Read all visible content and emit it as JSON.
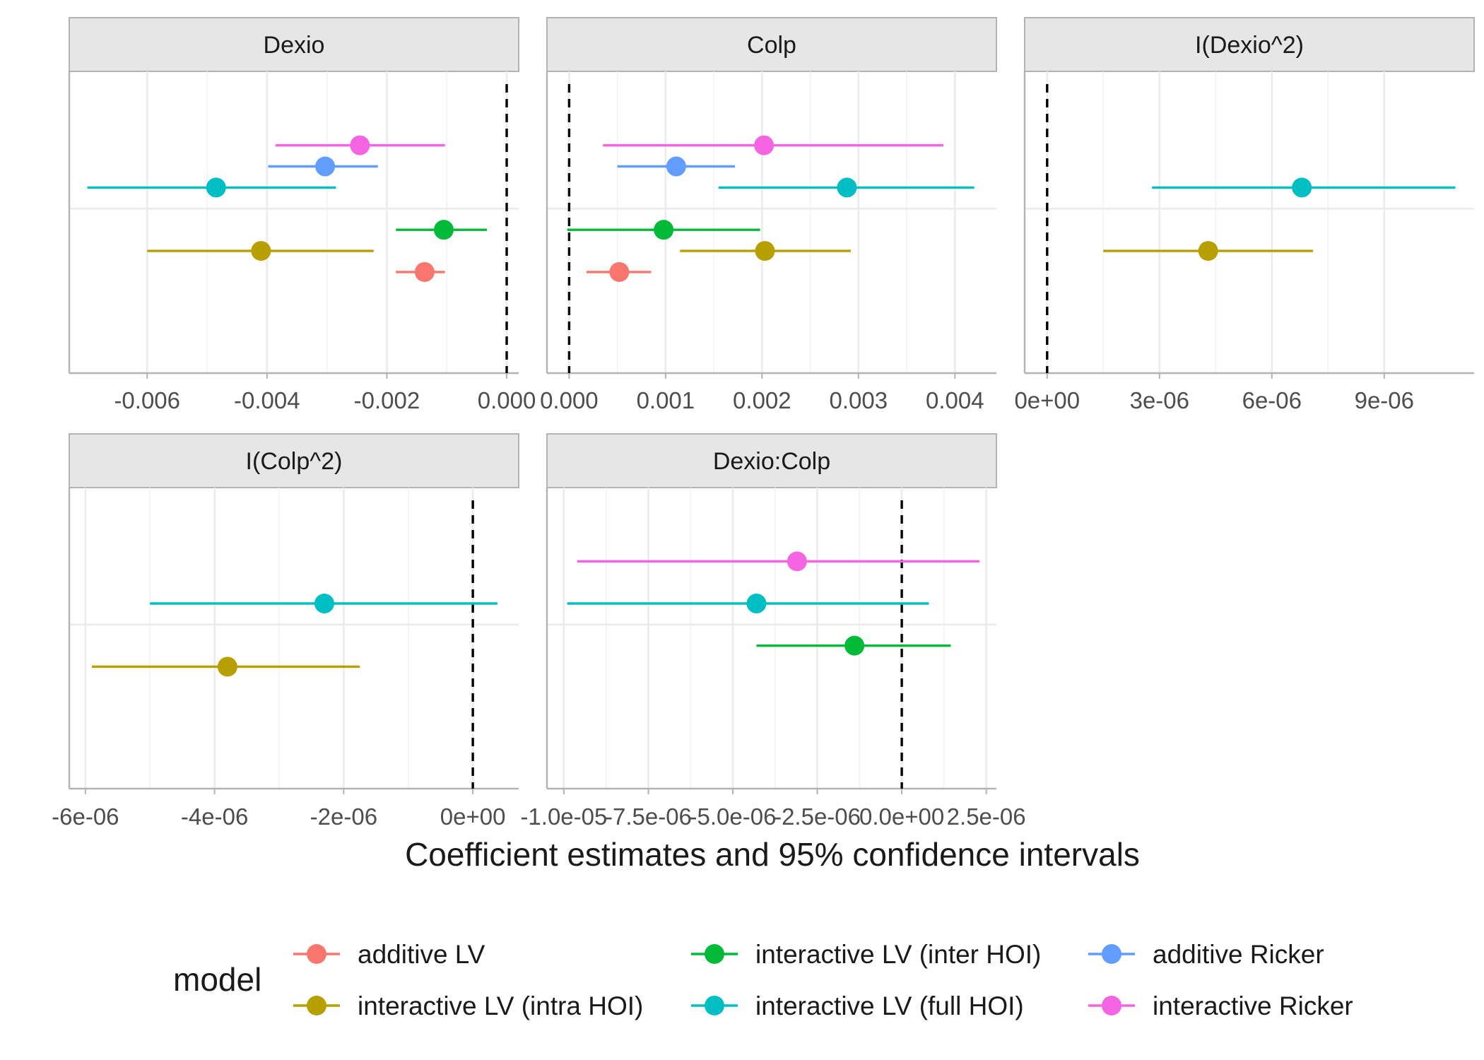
{
  "colors": {
    "additive LV": "#F8766D",
    "interactive LV (intra HOI)": "#B79F00",
    "interactive LV (inter HOI)": "#00BA38",
    "interactive LV (full HOI)": "#00BFC4",
    "additive Ricker": "#619CFF",
    "interactive Ricker": "#F564E3"
  },
  "chart_data": {
    "type": "dotwhisker",
    "xlabel": "Coefficient estimates and 95% confidence intervals",
    "reference_line": 0,
    "grid": true,
    "legend": {
      "title": "model",
      "position": "bottom",
      "entries": [
        "additive LV",
        "interactive LV (intra HOI)",
        "interactive LV (inter HOI)",
        "interactive LV (full HOI)",
        "additive Ricker",
        "interactive Ricker"
      ]
    },
    "panels": [
      {
        "name": "Dexio",
        "xlim": [
          -0.0073,
          0.0002
        ],
        "ticks": [
          -0.006,
          -0.004,
          -0.002,
          0.0
        ],
        "tick_labels": [
          "-0.006",
          "-0.004",
          "-0.002",
          "0.000"
        ],
        "series": [
          {
            "model": "additive LV",
            "estimate": -0.00137,
            "low": -0.00185,
            "high": -0.00103
          },
          {
            "model": "interactive LV (intra HOI)",
            "estimate": -0.0041,
            "low": -0.006,
            "high": -0.00222
          },
          {
            "model": "interactive LV (inter HOI)",
            "estimate": -0.00105,
            "low": -0.00185,
            "high": -0.00033
          },
          {
            "model": "interactive LV (full HOI)",
            "estimate": -0.00485,
            "low": -0.007,
            "high": -0.00285
          },
          {
            "model": "additive Ricker",
            "estimate": -0.00303,
            "low": -0.00398,
            "high": -0.00215
          },
          {
            "model": "interactive Ricker",
            "estimate": -0.00245,
            "low": -0.00386,
            "high": -0.00103
          }
        ]
      },
      {
        "name": "Colp",
        "xlim": [
          -0.00023,
          0.00443
        ],
        "ticks": [
          0.0,
          0.001,
          0.002,
          0.003,
          0.004
        ],
        "tick_labels": [
          "0.000",
          "0.001",
          "0.002",
          "0.003",
          "0.004"
        ],
        "series": [
          {
            "model": "additive LV",
            "estimate": 0.00052,
            "low": 0.00018,
            "high": 0.00085
          },
          {
            "model": "interactive LV (intra HOI)",
            "estimate": 0.00203,
            "low": 0.00115,
            "high": 0.00292
          },
          {
            "model": "interactive LV (inter HOI)",
            "estimate": 0.00098,
            "low": -2e-05,
            "high": 0.00198
          },
          {
            "model": "interactive LV (full HOI)",
            "estimate": 0.00288,
            "low": 0.00155,
            "high": 0.0042
          },
          {
            "model": "additive Ricker",
            "estimate": 0.00111,
            "low": 0.0005,
            "high": 0.00172
          },
          {
            "model": "interactive Ricker",
            "estimate": 0.00202,
            "low": 0.00035,
            "high": 0.00388
          }
        ]
      },
      {
        "name": "I(Dexio^2)",
        "xlim": [
          -6e-07,
          1.14e-05
        ],
        "ticks": [
          0.0,
          3e-06,
          6e-06,
          9e-06
        ],
        "tick_labels": [
          "0e+00",
          "3e-06",
          "6e-06",
          "9e-06"
        ],
        "series": [
          {
            "model": "interactive LV (intra HOI)",
            "estimate": 4.3e-06,
            "low": 1.5e-06,
            "high": 7.1e-06
          },
          {
            "model": "interactive LV (full HOI)",
            "estimate": 6.8e-06,
            "low": 2.8e-06,
            "high": 1.09e-05
          }
        ]
      },
      {
        "name": "I(Colp^2)",
        "xlim": [
          -6.25e-06,
          7.1e-07
        ],
        "ticks": [
          -6e-06,
          -4e-06,
          -2e-06,
          0.0
        ],
        "tick_labels": [
          "-6e-06",
          "-4e-06",
          "-2e-06",
          "0e+00"
        ],
        "series": [
          {
            "model": "interactive LV (intra HOI)",
            "estimate": -3.8e-06,
            "low": -5.9e-06,
            "high": -1.75e-06
          },
          {
            "model": "interactive LV (full HOI)",
            "estimate": -2.3e-06,
            "low": -5e-06,
            "high": 3.8e-07
          }
        ]
      },
      {
        "name": "Dexio:Colp",
        "xlim": [
          -1.05e-05,
          2.8e-06
        ],
        "ticks": [
          -1e-05,
          -7.5e-06,
          -5e-06,
          -2.5e-06,
          0.0,
          2.5e-06
        ],
        "tick_labels": [
          "-1.0e-05",
          "-7.5e-06",
          "-5.0e-06",
          "-2.5e-06",
          "0.0e+00",
          "2.5e-06"
        ],
        "series": [
          {
            "model": "interactive LV (inter HOI)",
            "estimate": -1.4e-06,
            "low": -4.3e-06,
            "high": 1.45e-06
          },
          {
            "model": "interactive LV (full HOI)",
            "estimate": -4.3e-06,
            "low": -9.9e-06,
            "high": 8e-07
          },
          {
            "model": "interactive Ricker",
            "estimate": -3.1e-06,
            "low": -9.6e-06,
            "high": 2.3e-06
          }
        ]
      }
    ]
  }
}
